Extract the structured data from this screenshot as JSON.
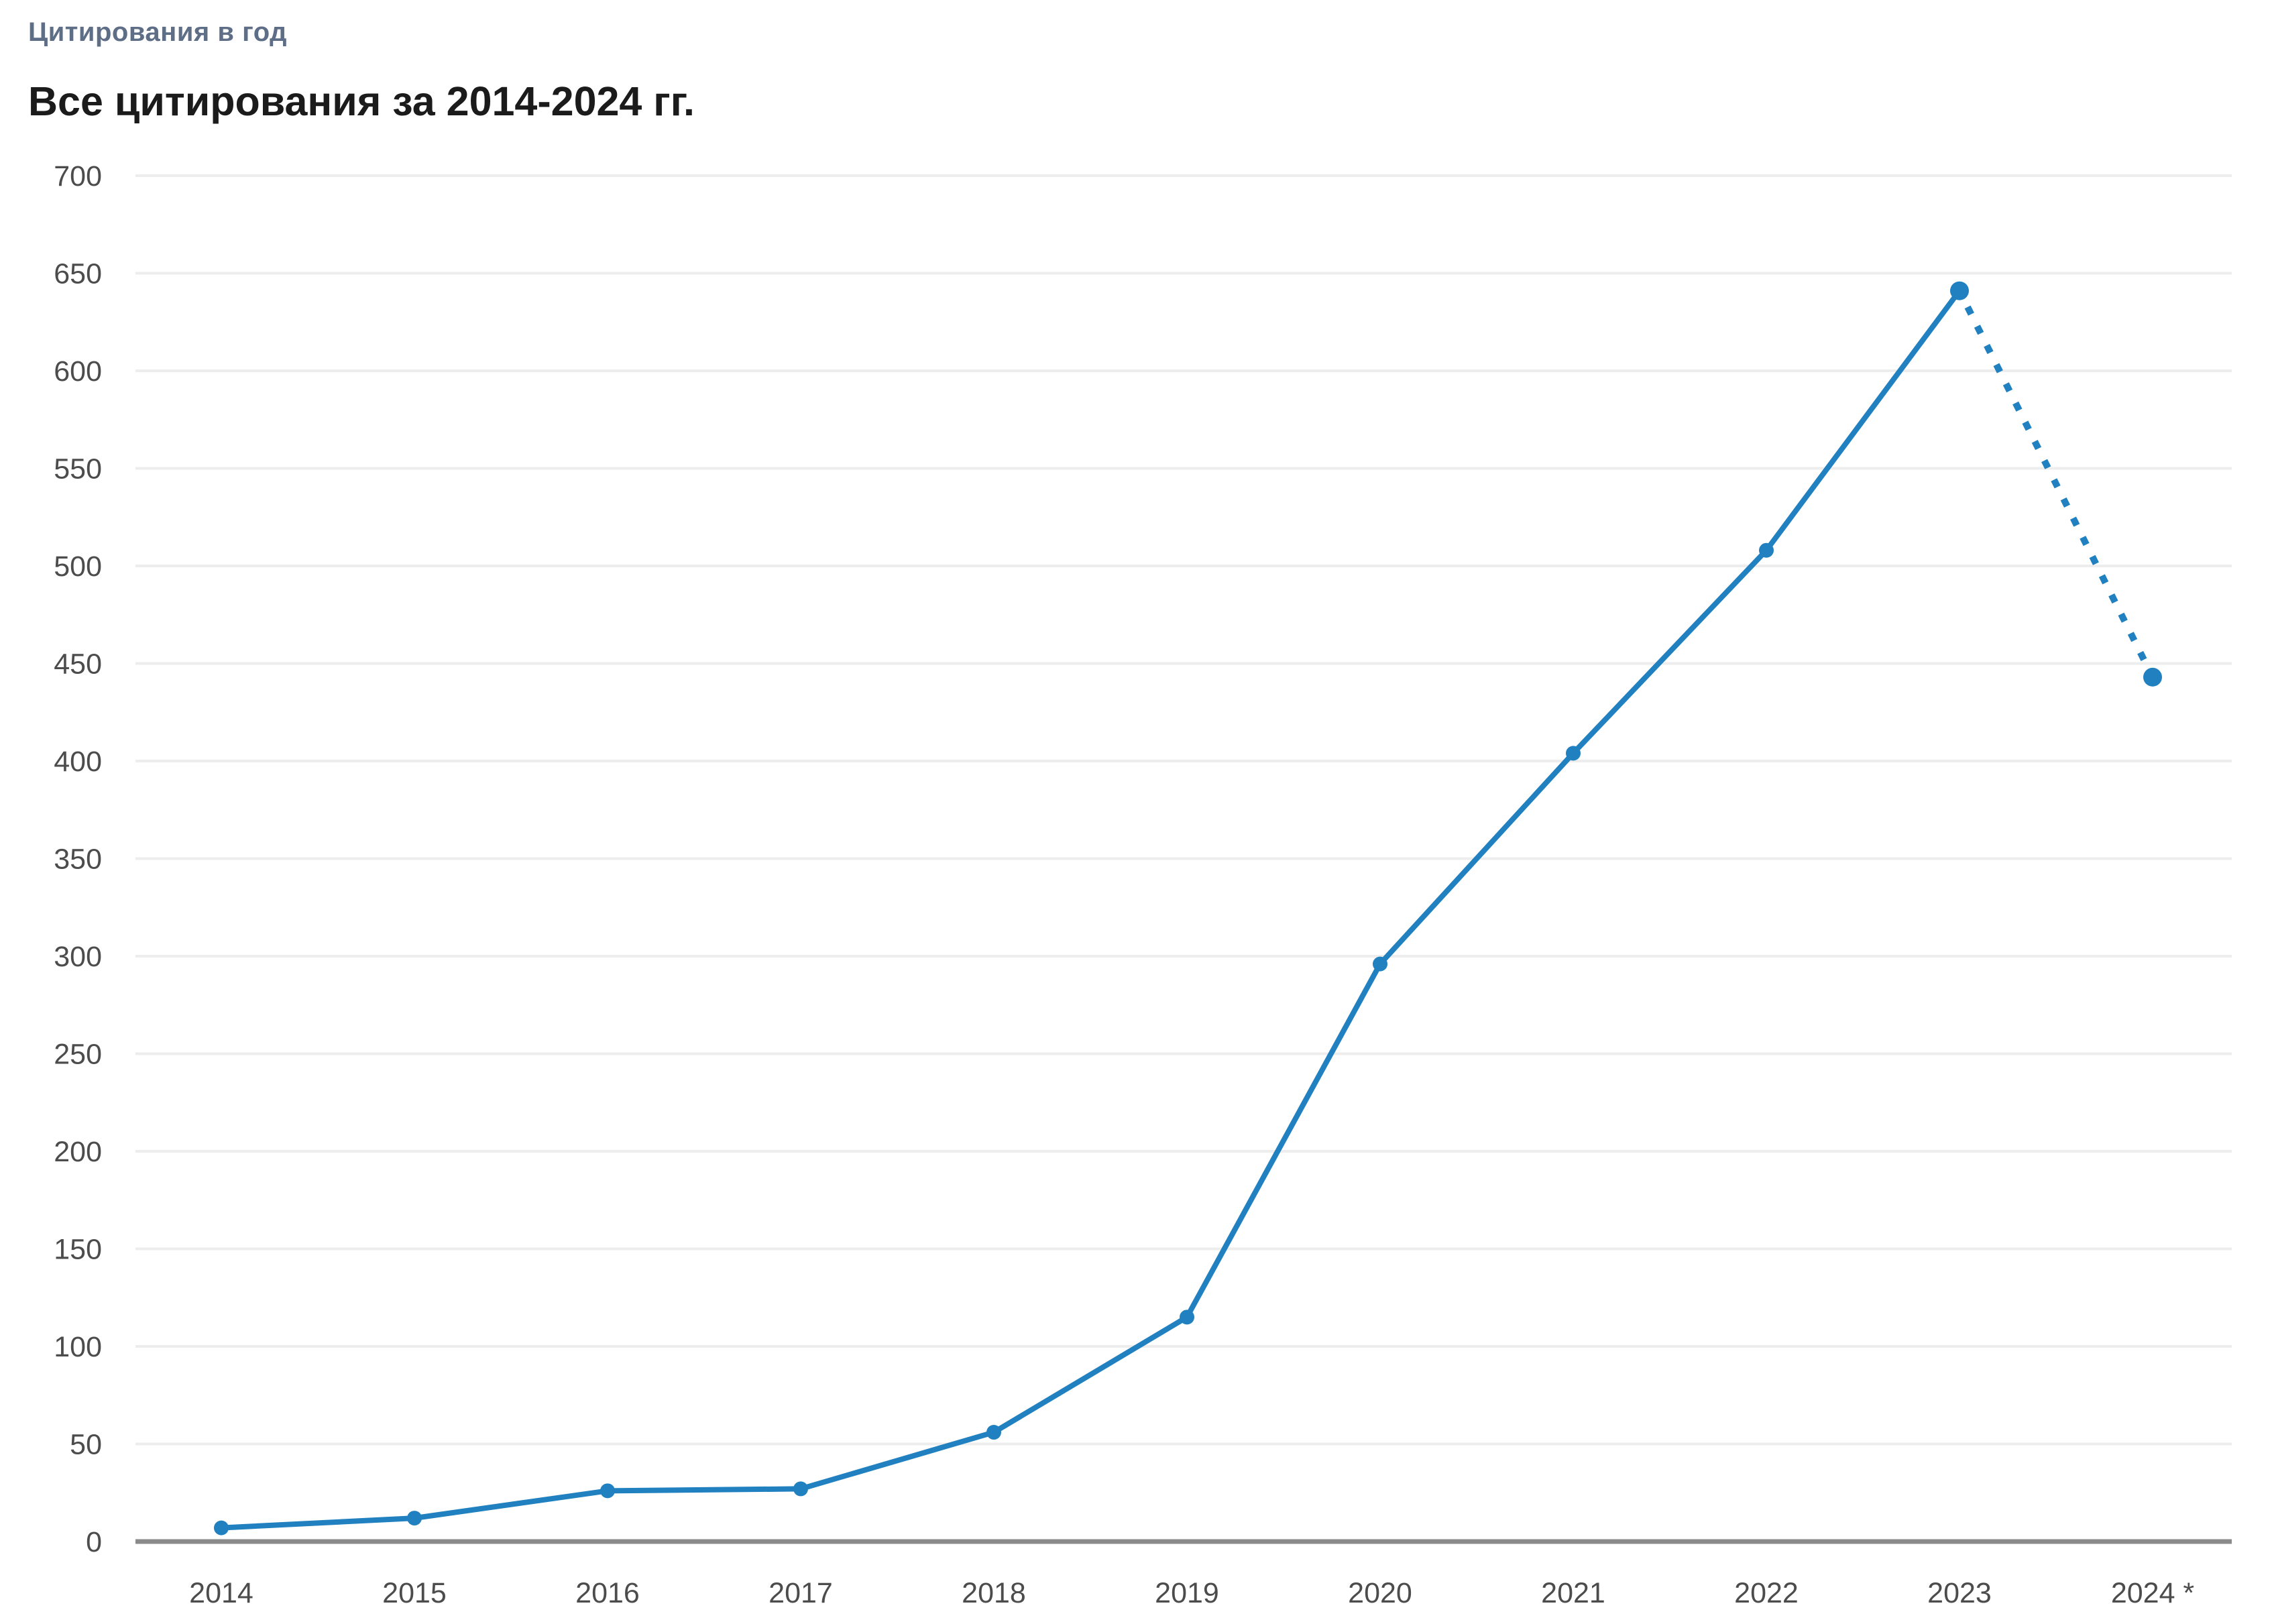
{
  "header": {
    "kicker": "Цитирования в год",
    "title": "Все цитирования за 2014-2024 гг."
  },
  "chart_data": {
    "type": "line",
    "title": "Все цитирования за 2014-2024 гг.",
    "subtitle": "Цитирования в год",
    "categories": [
      "2014",
      "2015",
      "2016",
      "2017",
      "2018",
      "2019",
      "2020",
      "2021",
      "2022",
      "2023",
      "2024 *"
    ],
    "series": [
      {
        "name": "Все цитирования",
        "values": [
          7,
          12,
          26,
          27,
          56,
          115,
          296,
          404,
          508,
          641,
          443
        ]
      }
    ],
    "projection_start_index": 9,
    "last_point_projected": true,
    "xlabel": "",
    "ylabel": "",
    "ylim": [
      0,
      700
    ],
    "yticks": [
      0,
      50,
      100,
      150,
      200,
      250,
      300,
      350,
      400,
      450,
      500,
      550,
      600,
      650,
      700
    ],
    "grid": "horizontal",
    "legend": "none",
    "colors": {
      "line": "#2080c0",
      "grid": "#ededed",
      "axis_baseline": "#8a8a8a",
      "tick_text": "#4c4c4c",
      "kicker_text": "#5e6e87",
      "title_text": "#1b1b1b",
      "background": "#ffffff"
    }
  }
}
